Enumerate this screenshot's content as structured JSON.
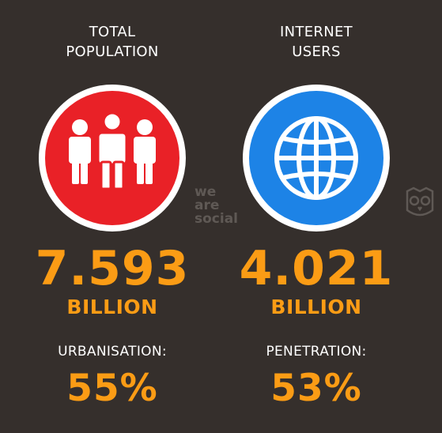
{
  "population": {
    "heading": "TOTAL\nPOPULATION",
    "icon": "people-icon",
    "value": "7.593",
    "unit": "BILLION",
    "sub_label": "URBANISATION:",
    "sub_value": "55%"
  },
  "internet": {
    "heading": "INTERNET\nUSERS",
    "icon": "globe-icon",
    "value": "4.021",
    "unit": "BILLION",
    "sub_label": "PENETRATION:",
    "sub_value": "53%"
  },
  "branding": {
    "we_are_social": "we\nare\nsocial",
    "owl_icon": "hootsuite-owl-icon"
  },
  "colors": {
    "background": "#352f2c",
    "accent": "#fb9c15",
    "red": "#e92127",
    "blue": "#1d83e6"
  }
}
